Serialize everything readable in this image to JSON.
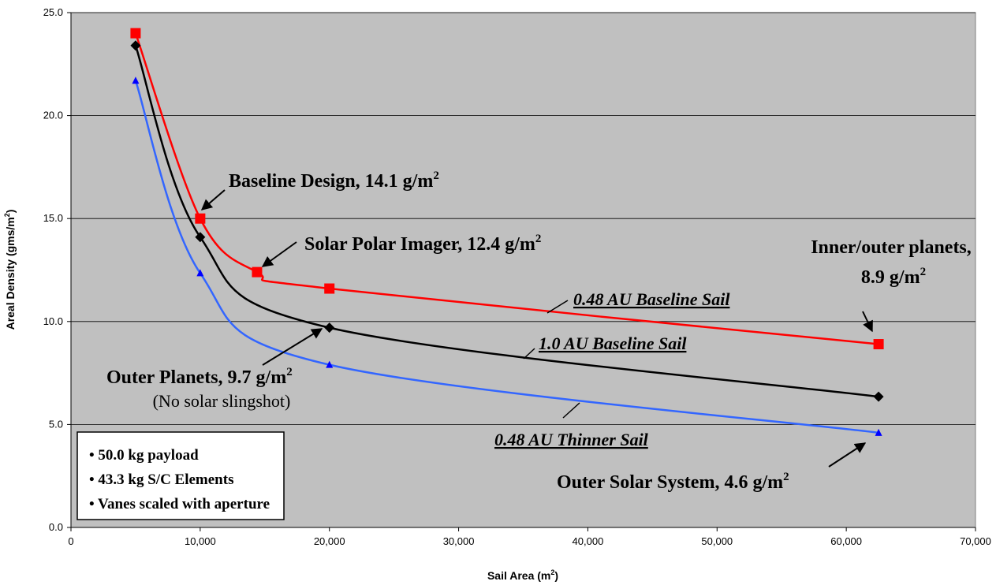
{
  "chart_data": {
    "type": "line",
    "xlabel": "Sail Area (m",
    "xlabel_sup": "2",
    "xlabel_end": ")",
    "ylabel": "Areal Density (gms/m",
    "ylabel_sup": "2",
    "ylabel_end": ")",
    "xlim": [
      0,
      70000
    ],
    "ylim": [
      0,
      25
    ],
    "x_ticks": [
      0,
      10000,
      20000,
      30000,
      40000,
      50000,
      60000,
      70000
    ],
    "x_tick_labels": [
      "0",
      "10,000",
      "20,000",
      "30,000",
      "40,000",
      "50,000",
      "60,000",
      "70,000"
    ],
    "y_ticks": [
      0,
      5,
      10,
      15,
      20,
      25
    ],
    "y_tick_labels": [
      "0.0",
      "5.0",
      "10.0",
      "15.0",
      "20.0",
      "25.0"
    ],
    "grid": "horizontal",
    "plot_background": "#c0c0c0",
    "series": [
      {
        "label": "0.48 AU Baseline Sail",
        "color": "#ff0000",
        "marker": "square",
        "x": [
          5000,
          10000,
          14400,
          20000,
          62500
        ],
        "y": [
          24.0,
          15.0,
          12.4,
          11.6,
          8.9
        ]
      },
      {
        "label": "1.0 AU Baseline Sail",
        "color": "#000000",
        "marker": "diamond",
        "x": [
          5000,
          10000,
          20000,
          62500
        ],
        "y": [
          23.4,
          14.1,
          9.7,
          6.35
        ]
      },
      {
        "label": "0.48 AU Thinner Sail",
        "color": "#3366ff",
        "marker": "triangle",
        "x": [
          5000,
          10000,
          20000,
          62500
        ],
        "y": [
          21.7,
          12.35,
          7.9,
          4.6
        ]
      }
    ],
    "annotations": [
      {
        "id": "baseline",
        "text": "Baseline Design, 14.1 g/m",
        "sup": "2"
      },
      {
        "id": "spi",
        "text": "Solar Polar Imager, 12.4 g/m",
        "sup": "2"
      },
      {
        "id": "inner1",
        "text": "Inner/outer planets,"
      },
      {
        "id": "inner2",
        "text": "8.9 g/m",
        "sup": "2"
      },
      {
        "id": "outer",
        "text": "Outer Planets, 9.7 g/m",
        "sup": "2"
      },
      {
        "id": "outer_note",
        "text": "(No solar slingshot)"
      },
      {
        "id": "oss",
        "text": "Outer Solar System, 4.6 g/m",
        "sup": "2"
      }
    ],
    "legend_box": [
      "• 50.0 kg payload",
      "• 43.3 kg S/C Elements",
      "• Vanes scaled with aperture"
    ]
  }
}
